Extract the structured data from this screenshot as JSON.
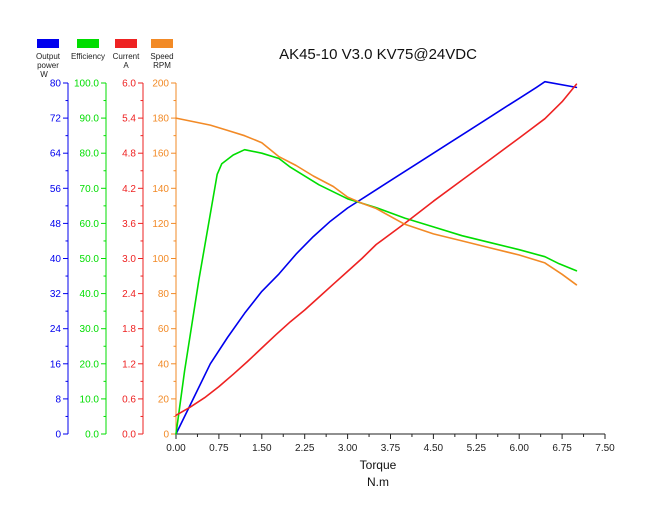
{
  "chart_data": {
    "type": "line",
    "title": "AK45-10 V3.0 KV75@24VDC",
    "xlabel": "Torque",
    "xlabel_unit": "N.m",
    "xlim": [
      0,
      7.5
    ],
    "x_ticks": [
      "0.00",
      "0.75",
      "1.50",
      "2.25",
      "3.00",
      "3.75",
      "4.50",
      "5.25",
      "6.00",
      "6.75",
      "7.50"
    ],
    "grid": false,
    "legend_placement": "top-left",
    "axes": [
      {
        "id": "power",
        "label": "Output power",
        "unit": "W",
        "color": "#0000ee",
        "ylim": [
          0,
          80
        ],
        "ticks": [
          "0",
          "8",
          "16",
          "24",
          "32",
          "40",
          "48",
          "56",
          "64",
          "72",
          "80"
        ]
      },
      {
        "id": "efficiency",
        "label": "Efficiency",
        "unit": "",
        "color": "#00dd00",
        "ylim": [
          0,
          100
        ],
        "ticks": [
          "0.0",
          "10.0",
          "20.0",
          "30.0",
          "40.0",
          "50.0",
          "60.0",
          "70.0",
          "80.0",
          "90.0",
          "100.0"
        ]
      },
      {
        "id": "current",
        "label": "Current",
        "unit": "A",
        "color": "#ee2222",
        "ylim": [
          0,
          6
        ],
        "ticks": [
          "0.0",
          "0.6",
          "1.2",
          "1.8",
          "2.4",
          "3.0",
          "3.6",
          "4.2",
          "4.8",
          "5.4",
          "6.0"
        ]
      },
      {
        "id": "speed",
        "label": "Speed",
        "unit": "RPM",
        "color": "#f28a26",
        "ylim": [
          0,
          200
        ],
        "ticks": [
          "0",
          "20",
          "40",
          "60",
          "80",
          "100",
          "120",
          "140",
          "160",
          "180",
          "200"
        ]
      }
    ],
    "series": [
      {
        "name": "Output power",
        "axis": "power",
        "color": "#0000ee",
        "x": [
          0,
          0.3,
          0.6,
          0.9,
          1.2,
          1.5,
          1.8,
          2.1,
          2.4,
          2.7,
          3.0,
          3.3,
          3.6,
          3.9,
          4.2,
          4.5,
          4.8,
          5.1,
          5.4,
          5.7,
          6.0,
          6.3,
          6.45,
          7.0
        ],
        "y": [
          0,
          8,
          16,
          22,
          27.5,
          32.5,
          36.5,
          41,
          45,
          48.5,
          51.5,
          54,
          56.5,
          59,
          61.5,
          64,
          66.5,
          69,
          71.5,
          74,
          76.5,
          79,
          80.3,
          79
        ]
      },
      {
        "name": "Efficiency",
        "axis": "efficiency",
        "color": "#00dd00",
        "x": [
          0,
          0.15,
          0.4,
          0.72,
          0.8,
          1.0,
          1.2,
          1.5,
          1.8,
          2.0,
          2.5,
          2.75,
          3.0,
          3.3,
          3.5,
          4.0,
          4.5,
          5.0,
          5.5,
          6.0,
          6.45,
          6.7,
          7.0
        ],
        "y": [
          0,
          18,
          44,
          74,
          77,
          79.5,
          81,
          80,
          78.5,
          76,
          71,
          69,
          67,
          65.5,
          64.5,
          61.5,
          59,
          56.5,
          54.5,
          52.5,
          50.5,
          48.5,
          46.5
        ]
      },
      {
        "name": "Current",
        "axis": "current",
        "color": "#ee2222",
        "x": [
          0,
          0.25,
          0.5,
          0.75,
          1.0,
          1.25,
          1.5,
          1.75,
          2.0,
          2.25,
          2.5,
          2.75,
          3.0,
          3.25,
          3.5,
          4.0,
          4.5,
          5.0,
          5.5,
          6.0,
          6.45,
          6.75,
          7.0
        ],
        "y": [
          0.32,
          0.46,
          0.62,
          0.81,
          1.02,
          1.24,
          1.47,
          1.7,
          1.92,
          2.12,
          2.34,
          2.56,
          2.78,
          3.0,
          3.24,
          3.6,
          3.98,
          4.34,
          4.7,
          5.06,
          5.39,
          5.68,
          5.98
        ]
      },
      {
        "name": "Speed",
        "axis": "speed",
        "color": "#f28a26",
        "x": [
          0,
          0.3,
          0.6,
          0.9,
          1.2,
          1.5,
          1.8,
          2.1,
          2.4,
          2.75,
          3.0,
          3.25,
          3.5,
          4.0,
          4.5,
          5.0,
          5.5,
          6.0,
          6.45,
          6.75,
          7.0
        ],
        "y": [
          180,
          178,
          176,
          173,
          170,
          166,
          158,
          153,
          147,
          141,
          135,
          131.5,
          128.5,
          119.5,
          114,
          110,
          106,
          102,
          97.5,
          91,
          85
        ]
      }
    ]
  }
}
